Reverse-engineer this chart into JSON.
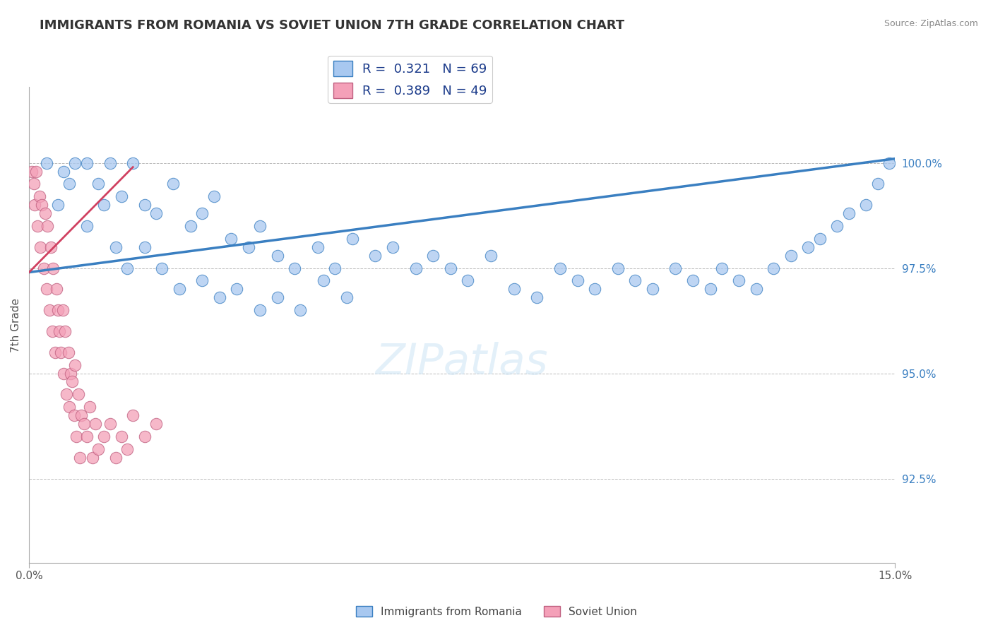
{
  "title": "IMMIGRANTS FROM ROMANIA VS SOVIET UNION 7TH GRADE CORRELATION CHART",
  "source": "Source: ZipAtlas.com",
  "ylabel": "7th Grade",
  "ylabel_ticks": [
    "92.5%",
    "95.0%",
    "97.5%",
    "100.0%"
  ],
  "ylabel_vals": [
    92.5,
    95.0,
    97.5,
    100.0
  ],
  "xlim": [
    0.0,
    15.0
  ],
  "ylim": [
    90.5,
    101.8
  ],
  "legend_romania": "Immigrants from Romania",
  "legend_soviet": "Soviet Union",
  "r_romania": "0.321",
  "n_romania": "69",
  "r_soviet": "0.389",
  "n_soviet": "49",
  "color_romania": "#a8c8f0",
  "color_soviet": "#f4a0b8",
  "color_line_romania": "#3a7fc1",
  "color_line_soviet": "#d04060",
  "romania_line_x0": 0.0,
  "romania_line_y0": 97.4,
  "romania_line_x1": 15.0,
  "romania_line_y1": 100.1,
  "soviet_line_x0": 0.0,
  "soviet_line_y0": 97.4,
  "soviet_line_x1": 1.8,
  "soviet_line_y1": 99.9,
  "romania_x": [
    0.3,
    0.6,
    0.8,
    1.0,
    1.2,
    1.4,
    1.6,
    1.8,
    2.0,
    2.2,
    2.5,
    2.8,
    3.0,
    3.2,
    3.5,
    3.8,
    4.0,
    4.3,
    4.6,
    5.0,
    5.3,
    5.6,
    6.0,
    6.3,
    6.7,
    7.0,
    7.3,
    7.6,
    8.0,
    8.4,
    8.8,
    9.2,
    9.5,
    9.8,
    10.2,
    10.5,
    10.8,
    11.2,
    11.5,
    11.8,
    12.0,
    12.3,
    12.6,
    12.9,
    13.2,
    13.5,
    13.7,
    14.0,
    14.2,
    14.5,
    14.7,
    14.9,
    0.5,
    0.7,
    1.0,
    1.3,
    1.5,
    1.7,
    2.0,
    2.3,
    2.6,
    3.0,
    3.3,
    3.6,
    4.0,
    4.3,
    4.7,
    5.1,
    5.5
  ],
  "romania_y": [
    100.0,
    99.8,
    100.0,
    100.0,
    99.5,
    100.0,
    99.2,
    100.0,
    99.0,
    98.8,
    99.5,
    98.5,
    98.8,
    99.2,
    98.2,
    98.0,
    98.5,
    97.8,
    97.5,
    98.0,
    97.5,
    98.2,
    97.8,
    98.0,
    97.5,
    97.8,
    97.5,
    97.2,
    97.8,
    97.0,
    96.8,
    97.5,
    97.2,
    97.0,
    97.5,
    97.2,
    97.0,
    97.5,
    97.2,
    97.0,
    97.5,
    97.2,
    97.0,
    97.5,
    97.8,
    98.0,
    98.2,
    98.5,
    98.8,
    99.0,
    99.5,
    100.0,
    99.0,
    99.5,
    98.5,
    99.0,
    98.0,
    97.5,
    98.0,
    97.5,
    97.0,
    97.2,
    96.8,
    97.0,
    96.5,
    96.8,
    96.5,
    97.2,
    96.8
  ],
  "soviet_x": [
    0.05,
    0.08,
    0.1,
    0.12,
    0.15,
    0.18,
    0.2,
    0.22,
    0.25,
    0.28,
    0.3,
    0.32,
    0.35,
    0.38,
    0.4,
    0.42,
    0.45,
    0.48,
    0.5,
    0.52,
    0.55,
    0.58,
    0.6,
    0.62,
    0.65,
    0.68,
    0.7,
    0.72,
    0.75,
    0.78,
    0.8,
    0.82,
    0.85,
    0.88,
    0.9,
    0.95,
    1.0,
    1.05,
    1.1,
    1.15,
    1.2,
    1.3,
    1.4,
    1.5,
    1.6,
    1.7,
    1.8,
    2.0,
    2.2
  ],
  "soviet_y": [
    99.8,
    99.5,
    99.0,
    99.8,
    98.5,
    99.2,
    98.0,
    99.0,
    97.5,
    98.8,
    97.0,
    98.5,
    96.5,
    98.0,
    96.0,
    97.5,
    95.5,
    97.0,
    96.5,
    96.0,
    95.5,
    96.5,
    95.0,
    96.0,
    94.5,
    95.5,
    94.2,
    95.0,
    94.8,
    94.0,
    95.2,
    93.5,
    94.5,
    93.0,
    94.0,
    93.8,
    93.5,
    94.2,
    93.0,
    93.8,
    93.2,
    93.5,
    93.8,
    93.0,
    93.5,
    93.2,
    94.0,
    93.5,
    93.8
  ]
}
